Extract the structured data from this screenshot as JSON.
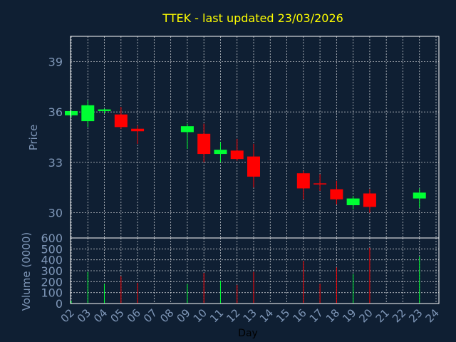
{
  "chart_data": [
    {
      "type": "candlestick",
      "title": "TTEK - last updated 23/03/2026",
      "ylabel": "Price",
      "ylim": [
        28.5,
        40.5
      ],
      "yticks": [
        30,
        33,
        36,
        39
      ],
      "grid": true,
      "series": [
        {
          "day": "02",
          "open": 35.8,
          "close": 36.05,
          "high": 36.1,
          "low": 35.7
        },
        {
          "day": "03",
          "open": 35.45,
          "close": 36.4,
          "high": 36.7,
          "low": 35.1
        },
        {
          "day": "04",
          "open": 36.05,
          "close": 36.15,
          "high": 36.2,
          "low": 35.9
        },
        {
          "day": "05",
          "open": 35.85,
          "close": 35.1,
          "high": 36.3,
          "low": 35.0
        },
        {
          "day": "06",
          "open": 35.0,
          "close": 34.85,
          "high": 35.2,
          "low": 34.1
        },
        {
          "day": "09",
          "open": 34.8,
          "close": 35.15,
          "high": 35.3,
          "low": 33.8
        },
        {
          "day": "10",
          "open": 34.7,
          "close": 33.5,
          "high": 35.3,
          "low": 33.0
        },
        {
          "day": "11",
          "open": 33.5,
          "close": 33.75,
          "high": 34.2,
          "low": 33.0
        },
        {
          "day": "12",
          "open": 33.7,
          "close": 33.2,
          "high": 34.4,
          "low": 33.1
        },
        {
          "day": "13",
          "open": 33.35,
          "close": 32.15,
          "high": 34.1,
          "low": 31.5
        },
        {
          "day": "16",
          "open": 32.35,
          "close": 31.45,
          "high": 32.5,
          "low": 30.8
        },
        {
          "day": "17",
          "open": 31.75,
          "close": 31.7,
          "high": 32.3,
          "low": 31.3
        },
        {
          "day": "18",
          "open": 31.4,
          "close": 30.8,
          "high": 31.9,
          "low": 30.5
        },
        {
          "day": "19",
          "open": 30.45,
          "close": 30.85,
          "high": 31.0,
          "low": 30.2
        },
        {
          "day": "20",
          "open": 31.15,
          "close": 30.35,
          "high": 31.4,
          "low": 30.0
        },
        {
          "day": "23",
          "open": 30.85,
          "close": 31.2,
          "high": 31.45,
          "low": 30.3
        }
      ]
    },
    {
      "type": "bar",
      "xlabel": "Day",
      "ylabel": "Volume (0000)",
      "ylim": [
        0,
        600
      ],
      "yticks": [
        0,
        100,
        200,
        300,
        400,
        500,
        600
      ],
      "grid": true,
      "series": [
        {
          "day": "02",
          "value": 25,
          "direction": "up"
        },
        {
          "day": "03",
          "value": 290,
          "direction": "up"
        },
        {
          "day": "04",
          "value": 180,
          "direction": "up"
        },
        {
          "day": "05",
          "value": 250,
          "direction": "down"
        },
        {
          "day": "06",
          "value": 190,
          "direction": "down"
        },
        {
          "day": "09",
          "value": 180,
          "direction": "up"
        },
        {
          "day": "10",
          "value": 280,
          "direction": "down"
        },
        {
          "day": "11",
          "value": 210,
          "direction": "up"
        },
        {
          "day": "12",
          "value": 170,
          "direction": "down"
        },
        {
          "day": "13",
          "value": 290,
          "direction": "down"
        },
        {
          "day": "16",
          "value": 390,
          "direction": "down"
        },
        {
          "day": "17",
          "value": 180,
          "direction": "down"
        },
        {
          "day": "18",
          "value": 330,
          "direction": "down"
        },
        {
          "day": "19",
          "value": 270,
          "direction": "up"
        },
        {
          "day": "20",
          "value": 510,
          "direction": "down"
        },
        {
          "day": "23",
          "value": 430,
          "direction": "up"
        }
      ]
    }
  ],
  "x_axis": {
    "ticks": [
      "02",
      "03",
      "04",
      "05",
      "06",
      "07",
      "08",
      "09",
      "10",
      "11",
      "12",
      "13",
      "14",
      "15",
      "16",
      "17",
      "18",
      "19",
      "20",
      "21",
      "22",
      "23",
      "24"
    ]
  },
  "colors": {
    "background": "#0f1f33",
    "title": "#ffff00",
    "axis_text": "#7f97b8",
    "xlabel_text": "#000000",
    "frame": "#ffffff",
    "up": "#00ff33",
    "down": "#ff0000"
  }
}
